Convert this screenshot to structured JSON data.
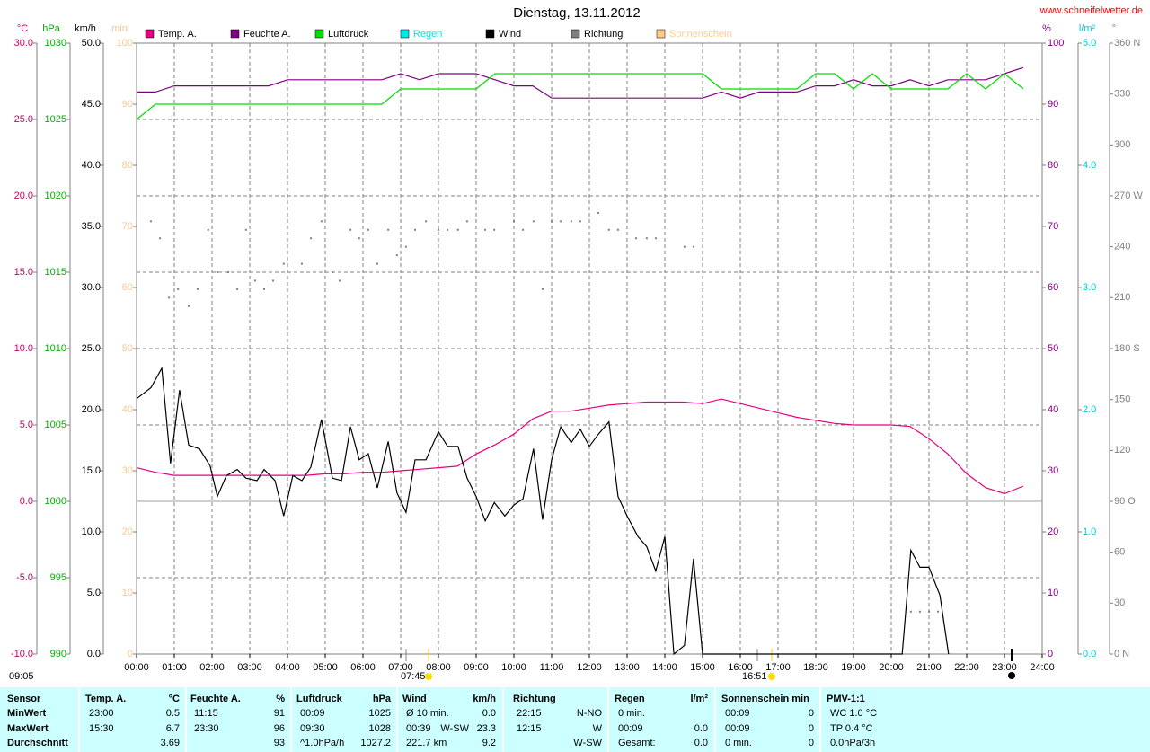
{
  "chart_data": {
    "type": "line",
    "title": "Dienstag, 13.11.2012",
    "source": "www.schneifelwetter.de",
    "xlim": [
      0,
      24
    ],
    "xticks": [
      {
        "value": 0,
        "label": "00:00"
      },
      {
        "value": 1,
        "label": "01:00"
      },
      {
        "value": 2,
        "label": "02:00"
      },
      {
        "value": 3,
        "label": "03:00"
      },
      {
        "value": 4,
        "label": "04:00"
      },
      {
        "value": 5,
        "label": "05:00"
      },
      {
        "value": 6,
        "label": "06:00"
      },
      {
        "value": 7,
        "label": "07:00"
      },
      {
        "value": 8,
        "label": "08:00"
      },
      {
        "value": 9,
        "label": "09:00"
      },
      {
        "value": 10,
        "label": "10:00"
      },
      {
        "value": 11,
        "label": "11:00"
      },
      {
        "value": 12,
        "label": "12:00"
      },
      {
        "value": 13,
        "label": "13:00"
      },
      {
        "value": 14,
        "label": "14:00"
      },
      {
        "value": 15,
        "label": "15:00"
      },
      {
        "value": 16,
        "label": "16:00"
      },
      {
        "value": 17,
        "label": "17:00"
      },
      {
        "value": 18,
        "label": "18:00"
      },
      {
        "value": 19,
        "label": "19:00"
      },
      {
        "value": 20,
        "label": "20:00"
      },
      {
        "value": 21,
        "label": "21:00"
      },
      {
        "value": 22,
        "label": "22:00"
      },
      {
        "value": 23,
        "label": "23:00"
      },
      {
        "value": 24,
        "label": "24:00"
      }
    ],
    "grid": true,
    "axes": [
      {
        "unit": "°C",
        "color": "#cc0066",
        "lim": [
          -10,
          30
        ],
        "ticks": [
          {
            "value": -10,
            "label": "-10.0"
          },
          {
            "value": -5,
            "label": "-5.0"
          },
          {
            "value": 0,
            "label": "0.0"
          },
          {
            "value": 5,
            "label": "5.0"
          },
          {
            "value": 10,
            "label": "10.0"
          },
          {
            "value": 15,
            "label": "15.0"
          },
          {
            "value": 20,
            "label": "20.0"
          },
          {
            "value": 25,
            "label": "25.0"
          },
          {
            "value": 30,
            "label": "30.0"
          }
        ]
      },
      {
        "unit": "hPa",
        "color": "#00b000",
        "lim": [
          990,
          1030
        ],
        "ticks": [
          990,
          995,
          1000,
          1005,
          1010,
          1015,
          1020,
          1025,
          1030
        ]
      },
      {
        "unit": "km/h",
        "color": "#000000",
        "lim": [
          0,
          50
        ],
        "ticks": [
          {
            "value": 0,
            "label": "0.0"
          },
          {
            "value": 5,
            "label": "5.0"
          },
          {
            "value": 10,
            "label": "10.0"
          },
          {
            "value": 15,
            "label": "15.0"
          },
          {
            "value": 20,
            "label": "20.0"
          },
          {
            "value": 25,
            "label": "25.0"
          },
          {
            "value": 30,
            "label": "30.0"
          },
          {
            "value": 35,
            "label": "35.0"
          },
          {
            "value": 40,
            "label": "40.0"
          },
          {
            "value": 45,
            "label": "45.0"
          },
          {
            "value": 50,
            "label": "50.0"
          }
        ]
      },
      {
        "unit": "min",
        "color": "#f5c890",
        "lim": [
          0,
          100
        ],
        "ticks": [
          0,
          10,
          20,
          30,
          40,
          50,
          60,
          70,
          80,
          90,
          100
        ]
      },
      {
        "unit": "%",
        "color": "#800080",
        "lim": [
          0,
          100
        ],
        "ticks": [
          0,
          10,
          20,
          30,
          40,
          50,
          60,
          70,
          80,
          90,
          100
        ]
      },
      {
        "unit": "l/m²",
        "color": "#00c8d8",
        "lim": [
          0,
          5
        ],
        "ticks": [
          {
            "value": 0,
            "label": "0.0"
          },
          {
            "value": 1,
            "label": "1.0"
          },
          {
            "value": 2,
            "label": "2.0"
          },
          {
            "value": 3,
            "label": "3.0"
          },
          {
            "value": 4,
            "label": "4.0"
          },
          {
            "value": 5,
            "label": "5.0"
          }
        ]
      },
      {
        "unit": "°",
        "color": "#808080",
        "lim": [
          0,
          360
        ],
        "ticks": [
          {
            "value": 0,
            "label": "0 N"
          },
          30,
          60,
          {
            "value": 90,
            "label": "90 O"
          },
          120,
          150,
          {
            "value": 180,
            "label": "180 S"
          },
          210,
          240,
          {
            "value": 270,
            "label": "270 W"
          },
          300,
          330,
          {
            "value": 360,
            "label": "360 N"
          }
        ]
      }
    ],
    "series": [
      {
        "name": "Temp. A.",
        "color": "#e6007e",
        "axis": 0,
        "x": [
          0,
          0.5,
          1,
          1.5,
          2,
          2.5,
          3,
          3.5,
          4,
          4.5,
          5,
          5.5,
          6,
          6.5,
          7,
          7.5,
          8,
          8.5,
          9,
          9.5,
          10,
          10.5,
          11,
          11.5,
          12,
          12.5,
          13,
          13.5,
          14,
          14.5,
          15,
          15.5,
          16,
          16.5,
          17,
          17.5,
          18,
          18.5,
          19,
          19.5,
          20,
          20.5,
          21,
          21.5,
          22,
          22.5,
          23,
          23.5
        ],
        "values": [
          2.2,
          1.9,
          1.7,
          1.7,
          1.7,
          1.7,
          1.7,
          1.7,
          1.7,
          1.7,
          1.8,
          1.8,
          1.9,
          1.9,
          2.0,
          2.1,
          2.2,
          2.3,
          3.1,
          3.7,
          4.4,
          5.4,
          5.9,
          5.9,
          6.1,
          6.3,
          6.4,
          6.5,
          6.5,
          6.5,
          6.4,
          6.7,
          6.4,
          6.1,
          5.8,
          5.5,
          5.3,
          5.1,
          5.0,
          5.0,
          5.0,
          4.9,
          4.1,
          3.1,
          1.8,
          0.9,
          0.5,
          1.0
        ]
      },
      {
        "name": "Feuchte A.",
        "color": "#800080",
        "axis": 4,
        "x": [
          0,
          0.5,
          1,
          1.5,
          2,
          2.5,
          3,
          3.5,
          4,
          4.5,
          5,
          5.5,
          6,
          6.5,
          7,
          7.5,
          8,
          8.5,
          9,
          9.5,
          10,
          10.5,
          11,
          11.5,
          12,
          12.5,
          13,
          13.5,
          14,
          14.5,
          15,
          15.5,
          16,
          16.5,
          17,
          17.5,
          18,
          18.5,
          19,
          19.5,
          20,
          20.5,
          21,
          21.5,
          22,
          22.5,
          23,
          23.5
        ],
        "values": [
          92,
          92,
          93,
          93,
          93,
          93,
          93,
          93,
          94,
          94,
          94,
          94,
          94,
          94,
          95,
          94,
          95,
          95,
          95,
          94,
          93,
          93,
          91,
          91,
          91,
          91,
          91,
          91,
          91,
          91,
          91,
          92,
          91,
          92,
          92,
          92,
          93,
          93,
          94,
          93,
          93,
          94,
          93,
          94,
          94,
          94,
          95,
          96
        ]
      },
      {
        "name": "Luftdruck",
        "color": "#00dd00",
        "axis": 1,
        "x": [
          0,
          0.5,
          1,
          1.5,
          2,
          2.5,
          3,
          3.5,
          4,
          4.5,
          5,
          5.5,
          6,
          6.5,
          7,
          7.5,
          8,
          8.5,
          9,
          9.5,
          10,
          10.5,
          11,
          11.5,
          12,
          12.5,
          13,
          13.5,
          14,
          14.5,
          15,
          15.5,
          16,
          16.5,
          17,
          17.5,
          18,
          18.5,
          19,
          19.5,
          20,
          20.5,
          21,
          21.5,
          22,
          22.5,
          23,
          23.5
        ],
        "values": [
          1025,
          1026,
          1026,
          1026,
          1026,
          1026,
          1026,
          1026,
          1026,
          1026,
          1026,
          1026,
          1026,
          1026,
          1027,
          1027,
          1027,
          1027,
          1027,
          1028,
          1028,
          1028,
          1028,
          1028,
          1028,
          1028,
          1028,
          1028,
          1028,
          1028,
          1028,
          1027,
          1027,
          1027,
          1027,
          1027,
          1028,
          1028,
          1027,
          1028,
          1027,
          1027,
          1027,
          1027,
          1028,
          1027,
          1028,
          1027
        ]
      },
      {
        "name": "Regen",
        "color": "#00e8e8",
        "axis": 5
      },
      {
        "name": "Wind",
        "color": "#000000",
        "axis": 2,
        "x": [
          0,
          0.38,
          0.67,
          0.9,
          1.14,
          1.38,
          1.67,
          1.95,
          2.14,
          2.38,
          2.67,
          2.9,
          3.19,
          3.38,
          3.67,
          3.9,
          4.14,
          4.38,
          4.62,
          4.9,
          5.19,
          5.43,
          5.67,
          5.9,
          6.14,
          6.38,
          6.67,
          6.9,
          7.14,
          7.38,
          7.67,
          8,
          8.24,
          8.52,
          8.76,
          9,
          9.24,
          9.48,
          9.76,
          10,
          10.24,
          10.52,
          10.76,
          11,
          11.24,
          11.52,
          11.76,
          12,
          12.24,
          12.52,
          12.76,
          13,
          13.29,
          13.52,
          13.76,
          14,
          14.24,
          14.52,
          14.76,
          15,
          20.29,
          20.52,
          20.76,
          21,
          21.29,
          21.52
        ],
        "values": [
          20.9,
          21.8,
          23.4,
          15.6,
          21.6,
          17.1,
          16.8,
          15.4,
          12.9,
          14.6,
          15.1,
          14.4,
          14.2,
          15.1,
          14.2,
          11.3,
          14.6,
          14.2,
          15.3,
          19.2,
          14.4,
          14.2,
          18.6,
          15.9,
          16.4,
          13.6,
          17.4,
          13.2,
          11.6,
          15.9,
          15.9,
          18.2,
          17.0,
          17.0,
          14.4,
          12.9,
          10.9,
          12.4,
          11.3,
          12.2,
          12.7,
          16.8,
          11.0,
          15.9,
          18.6,
          17.3,
          18.4,
          17.0,
          18.0,
          19.0,
          12.9,
          11.3,
          9.6,
          8.8,
          6.8,
          9.6,
          0,
          0.7,
          7.8,
          0,
          0,
          8.5,
          7.1,
          7.1,
          4.8,
          0
        ]
      },
      {
        "name": "Richtung",
        "color": "#808080",
        "axis": 6,
        "type": "scatter",
        "x": [
          0.38,
          0.62,
          0.86,
          1.1,
          1.38,
          1.62,
          1.9,
          2.14,
          2.43,
          2.67,
          2.9,
          3.14,
          3.38,
          3.62,
          3.9,
          4.38,
          4.62,
          4.9,
          5.19,
          5.38,
          5.67,
          5.9,
          6.14,
          6.38,
          6.67,
          6.9,
          7.14,
          7.38,
          7.67,
          8,
          8.24,
          8.52,
          8.76,
          9.24,
          9.48,
          10,
          10.24,
          10.52,
          10.76,
          11,
          11.24,
          11.52,
          11.76,
          12.24,
          12.52,
          12.76,
          13.24,
          13.52,
          13.76,
          14.52,
          14.76,
          20.52,
          20.76,
          21,
          21.24
        ],
        "values": [
          255,
          245,
          210,
          215,
          205,
          215,
          250,
          225,
          225,
          215,
          250,
          220,
          215,
          220,
          230,
          230,
          245,
          255,
          225,
          220,
          250,
          245,
          250,
          230,
          250,
          235,
          240,
          250,
          255,
          250,
          250,
          250,
          255,
          250,
          250,
          255,
          250,
          255,
          215,
          255,
          255,
          255,
          255,
          260,
          250,
          250,
          245,
          245,
          245,
          240,
          240,
          25,
          25,
          25,
          25
        ]
      },
      {
        "name": "Sonnenschein",
        "color": "#ffcc88",
        "axis": 3
      }
    ],
    "annotations": [
      "09:05",
      "07:45",
      "16:51"
    ]
  },
  "stats": {
    "columns": [
      {
        "name": "Sensor"
      },
      {
        "name": "Temp. A.",
        "unit": "°C"
      },
      {
        "name": "Feuchte A.",
        "unit": "%"
      },
      {
        "name": "Luftdruck",
        "unit": "hPa"
      },
      {
        "name": "Wind",
        "unit": "km/h"
      },
      {
        "name": "Richtung"
      },
      {
        "name": "Regen",
        "unit": "l/m²"
      },
      {
        "name": "Sonnenschein min"
      },
      {
        "name": "PMV-1:1"
      }
    ],
    "rows": [
      {
        "label": "MinWert",
        "cells": [
          {
            "l": "23:00",
            "r": "0.5"
          },
          {
            "l": "11:15",
            "r": "91"
          },
          {
            "l": "00:09",
            "r": "1025"
          },
          {
            "l": "Ø 10 min.",
            "r": "0.0"
          },
          {
            "l": "22:15",
            "r": "N-NO"
          },
          {
            "l": "0 min."
          },
          {
            "l": "00:09",
            "r": "0"
          },
          {
            "l": "WC 1.0 °C"
          }
        ]
      },
      {
        "label": "MaxWert",
        "cells": [
          {
            "l": "15:30",
            "r": "6.7"
          },
          {
            "l": "23:30",
            "r": "96"
          },
          {
            "l": "09:30",
            "r": "1028"
          },
          {
            "l": "00:39",
            "m": "W-SW",
            "r": "23.3"
          },
          {
            "l": "12:15",
            "r": "W"
          },
          {
            "l": "00:09",
            "r": "0.0"
          },
          {
            "l": "00:09",
            "r": "0"
          },
          {
            "l": "TP 0.4 °C"
          }
        ]
      },
      {
        "label": "Durchschnitt",
        "cells": [
          {
            "r": "3.69"
          },
          {
            "r": "93"
          },
          {
            "l": "^1.0hPa/h",
            "r": "1027.2"
          },
          {
            "l": "221.7 km",
            "r": "9.2"
          },
          {
            "r": "W-SW"
          },
          {
            "l": "Gesamt:",
            "r": "0.0"
          },
          {
            "l": "0 min.",
            "r": "0"
          },
          {
            "l": "0.0hPa/3h"
          }
        ]
      }
    ]
  }
}
